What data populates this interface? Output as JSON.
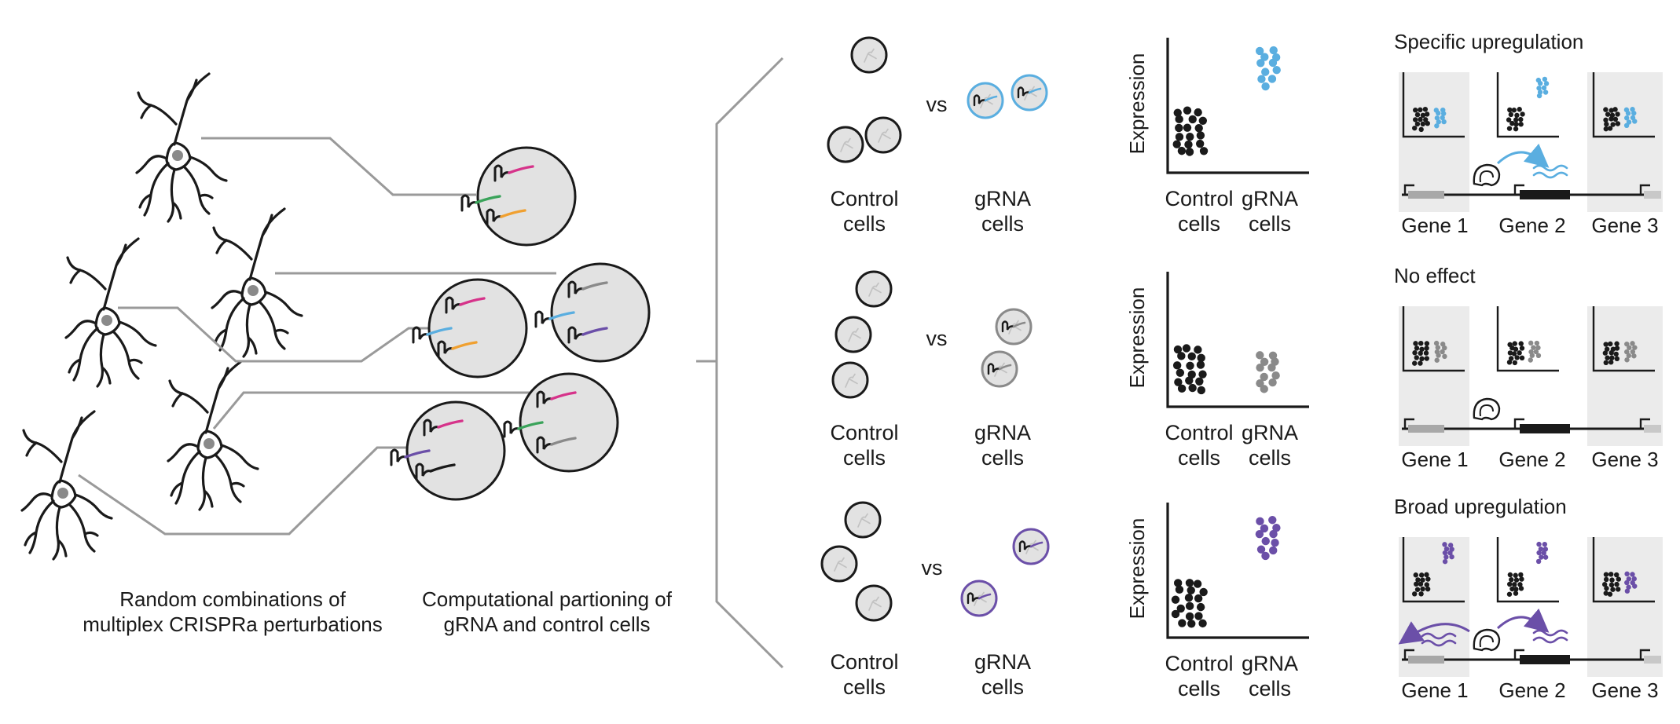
{
  "colors": {
    "blue": "#5aaee0",
    "gray": "#8a8a8a",
    "purple": "#6b4fa8",
    "pink": "#d6338a",
    "green": "#3aa35a",
    "orange": "#f0a030",
    "cell_fill": "#e2e2e2",
    "panel_shade": "#ebebeb",
    "dim_text": "#c4c4c4"
  },
  "left": {
    "caption_line1": "Random combinations of",
    "caption_line2": "multiplex CRISPRa perturbations"
  },
  "middle": {
    "caption_line1": "Computational partioning of",
    "caption_line2": "gRNA and control cells"
  },
  "comparison": {
    "vs": "vs",
    "control_line1": "Control",
    "control_line2": "cells",
    "grna_line1": "gRNA",
    "grna_line2": "cells"
  },
  "scatter": {
    "ylabel": "Expression",
    "x_control_line1": "Control",
    "x_control_line2": "cells",
    "x_grna_line1": "gRNA",
    "x_grna_line2": "cells"
  },
  "outcomes": [
    {
      "title": "Specific upregulation",
      "gene1": "Gene 1",
      "gene2": "Gene 2",
      "gene3": "Gene 3"
    },
    {
      "title": "No effect",
      "gene1": "Gene 1",
      "gene2": "Gene 2",
      "gene3": "Gene 3"
    },
    {
      "title": "Broad upregulation",
      "gene1": "Gene 1",
      "gene2": "Gene 2",
      "gene3": "Gene 3"
    }
  ],
  "icons": [
    "neuron-icon",
    "cell-icon",
    "grna-icon",
    "dcas9-activator-icon",
    "transcription-arrow-icon",
    "promoter-arrow-icon",
    "mrna-wave-icon"
  ]
}
